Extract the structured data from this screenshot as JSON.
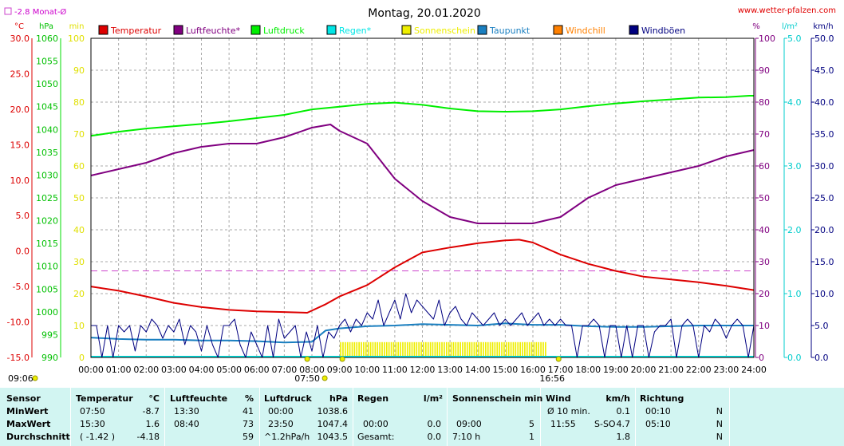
{
  "page": {
    "title": "Montag, 20.01.2020",
    "website": "www.wetter-pfalzen.com",
    "month_avg_label": "-2.8 Monat-Ø"
  },
  "chart_data": {
    "type": "line",
    "title": "Montag, 20.01.2020",
    "x_range_hours": [
      0,
      24
    ],
    "x_tick_labels": [
      "00:00",
      "01:00",
      "02:00",
      "03:00",
      "04:00",
      "05:00",
      "06:00",
      "07:00",
      "08:00",
      "09:00",
      "10:00",
      "11:00",
      "12:00",
      "13:00",
      "14:00",
      "15:00",
      "16:00",
      "17:00",
      "18:00",
      "19:00",
      "20:00",
      "21:00",
      "22:00",
      "23:00",
      "24:00"
    ],
    "grid": true,
    "legend_position": "top",
    "axes": {
      "temperature": {
        "unit": "°C",
        "range": [
          -15,
          30
        ],
        "ticks": [
          "30.0",
          "25.0",
          "20.0",
          "15.0",
          "10.0",
          "5.0",
          "0.0",
          "-5.0",
          "-10.0",
          "-15.0"
        ]
      },
      "pressure": {
        "unit": "hPa",
        "range": [
          990,
          1060
        ],
        "ticks": [
          "1060",
          "1055",
          "1050",
          "1045",
          "1040",
          "1035",
          "1030",
          "1025",
          "1020",
          "1015",
          "1010",
          "1005",
          "1000",
          "995",
          "990"
        ]
      },
      "minutes": {
        "unit": "min",
        "range": [
          0,
          100
        ],
        "ticks": [
          "100",
          "90",
          "80",
          "70",
          "60",
          "50",
          "40",
          "30",
          "20",
          "10",
          "0"
        ]
      },
      "humidity": {
        "unit": "%",
        "range": [
          0,
          100
        ],
        "ticks": [
          "100",
          "90",
          "80",
          "70",
          "60",
          "50",
          "40",
          "30",
          "20",
          "10",
          "0"
        ]
      },
      "rain": {
        "unit": "l/m²",
        "range": [
          0,
          5
        ],
        "ticks": [
          "5.0",
          "4.0",
          "3.0",
          "2.0",
          "1.0",
          "0.0"
        ]
      },
      "wind": {
        "unit": "km/h",
        "range": [
          0,
          50
        ],
        "ticks": [
          "50.0",
          "45.0",
          "40.0",
          "35.0",
          "30.0",
          "25.0",
          "20.0",
          "15.0",
          "10.0",
          "5.0",
          "0.0"
        ]
      }
    },
    "monthly_avg_temperature": -2.8,
    "legend": [
      {
        "name": "Temperatur",
        "color": "#dd0000"
      },
      {
        "name": "Luftfeuchte*",
        "color": "#800080"
      },
      {
        "name": "Luftdruck",
        "color": "#00ee00"
      },
      {
        "name": "Regen*",
        "color": "#00e5e5"
      },
      {
        "name": "Sonnenschein",
        "color": "#eeee00"
      },
      {
        "name": "Taupunkt",
        "color": "#1a7fc0"
      },
      {
        "name": "Windchill",
        "color": "#ff8000"
      },
      {
        "name": "Windböen",
        "color": "#000080"
      }
    ],
    "series": [
      {
        "name": "Temperatur",
        "axis": "temperature",
        "color": "#dd0000",
        "x": [
          0,
          1,
          2,
          3,
          4,
          5,
          6,
          7,
          7.83,
          8.5,
          9,
          10,
          11,
          12,
          13,
          14,
          15,
          15.5,
          16,
          17,
          18,
          19,
          20,
          21,
          22,
          23,
          24
        ],
        "y": [
          -5.0,
          -5.6,
          -6.4,
          -7.3,
          -7.9,
          -8.3,
          -8.5,
          -8.6,
          -8.7,
          -7.5,
          -6.4,
          -4.8,
          -2.3,
          -0.2,
          0.5,
          1.1,
          1.5,
          1.6,
          1.2,
          -0.5,
          -1.8,
          -2.8,
          -3.6,
          -4.0,
          -4.4,
          -4.9,
          -5.5
        ]
      },
      {
        "name": "Luftfeuchte",
        "axis": "humidity",
        "color": "#800080",
        "x": [
          0,
          1,
          2,
          3,
          4,
          5,
          6,
          7,
          8,
          8.67,
          9,
          10,
          11,
          12,
          13,
          14,
          15,
          16,
          17,
          18,
          19,
          20,
          21,
          22,
          23,
          24
        ],
        "y": [
          57,
          59,
          61,
          64,
          66,
          67,
          67,
          69,
          72,
          73,
          71,
          67,
          56,
          49,
          44,
          42,
          42,
          42,
          44,
          50,
          54,
          56,
          58,
          60,
          63,
          65
        ]
      },
      {
        "name": "Luftdruck",
        "axis": "pressure",
        "color": "#00ee00",
        "x": [
          0,
          1,
          2,
          3,
          4,
          5,
          6,
          7,
          8,
          9,
          10,
          11,
          12,
          13,
          14,
          15,
          16,
          17,
          18,
          19,
          20,
          21,
          22,
          23,
          23.83,
          24
        ],
        "y": [
          1038.6,
          1039.5,
          1040.2,
          1040.7,
          1041.2,
          1041.8,
          1042.5,
          1043.2,
          1044.4,
          1045.0,
          1045.6,
          1045.9,
          1045.4,
          1044.6,
          1044.0,
          1043.9,
          1044.0,
          1044.4,
          1045.1,
          1045.7,
          1046.2,
          1046.6,
          1047.0,
          1047.1,
          1047.4,
          1047.4
        ]
      },
      {
        "name": "Taupunkt",
        "axis": "temperature",
        "color": "#1a7fc0",
        "x": [
          0,
          1,
          2,
          3,
          4,
          5,
          6,
          7,
          8,
          8.5,
          9,
          10,
          11,
          12,
          13,
          14,
          15,
          16,
          17,
          18,
          19,
          20,
          21,
          22,
          23,
          24
        ],
        "y": [
          -12.2,
          -12.4,
          -12.5,
          -12.5,
          -12.6,
          -12.6,
          -12.7,
          -12.9,
          -12.8,
          -11.2,
          -10.9,
          -10.6,
          -10.5,
          -10.3,
          -10.4,
          -10.5,
          -10.2,
          -10.4,
          -10.4,
          -10.6,
          -10.7,
          -10.7,
          -10.6,
          -10.5,
          -10.5,
          -10.5
        ]
      },
      {
        "name": "Windböen",
        "axis": "wind",
        "color": "#000080",
        "x": [
          0,
          0.2,
          0.4,
          0.6,
          0.8,
          1,
          1.2,
          1.4,
          1.6,
          1.8,
          2,
          2.2,
          2.4,
          2.6,
          2.8,
          3,
          3.2,
          3.4,
          3.6,
          3.8,
          4,
          4.2,
          4.4,
          4.6,
          4.8,
          5,
          5.2,
          5.4,
          5.6,
          5.8,
          6,
          6.2,
          6.4,
          6.6,
          6.8,
          7,
          7.2,
          7.4,
          7.6,
          7.8,
          8,
          8.2,
          8.4,
          8.6,
          8.8,
          9,
          9.2,
          9.4,
          9.6,
          9.8,
          10,
          10.2,
          10.4,
          10.6,
          10.8,
          11,
          11.2,
          11.4,
          11.6,
          11.8,
          12,
          12.2,
          12.4,
          12.6,
          12.8,
          13,
          13.2,
          13.4,
          13.6,
          13.8,
          14,
          14.2,
          14.4,
          14.6,
          14.8,
          15,
          15.2,
          15.4,
          15.6,
          15.8,
          16,
          16.2,
          16.4,
          16.6,
          16.8,
          17,
          17.2,
          17.4,
          17.6,
          17.8,
          18,
          18.2,
          18.4,
          18.6,
          18.8,
          19,
          19.2,
          19.4,
          19.6,
          19.8,
          20,
          20.2,
          20.4,
          20.6,
          20.8,
          21,
          21.2,
          21.4,
          21.6,
          21.8,
          22,
          22.2,
          22.4,
          22.6,
          22.8,
          23,
          23.2,
          23.4,
          23.6,
          23.8,
          24
        ],
        "y": [
          5,
          5,
          0,
          5,
          0,
          5,
          4,
          5,
          1,
          5,
          4,
          6,
          5,
          3,
          5,
          4,
          6,
          2,
          5,
          4,
          1,
          5,
          2,
          0,
          5,
          5,
          6,
          2,
          0,
          4,
          2,
          0,
          5,
          0,
          6,
          3,
          4,
          5,
          0,
          4,
          1,
          5,
          0,
          4,
          3,
          5,
          6,
          4,
          6,
          5,
          7,
          6,
          9,
          5,
          7,
          9,
          6,
          10,
          7,
          9,
          8,
          7,
          6,
          9,
          5,
          7,
          8,
          6,
          5,
          7,
          6,
          5,
          6,
          7,
          5,
          6,
          5,
          6,
          7,
          5,
          6,
          7,
          5,
          6,
          5,
          6,
          5,
          5,
          0,
          5,
          5,
          6,
          5,
          0,
          5,
          5,
          0,
          5,
          0,
          5,
          5,
          0,
          4,
          5,
          5,
          6,
          0,
          5,
          6,
          5,
          0,
          5,
          4,
          6,
          5,
          3,
          5,
          6,
          5,
          0,
          5
        ]
      }
    ],
    "sunshine_bars": {
      "from_hour": 9,
      "to_hour": 16.5,
      "level_min": 4.8,
      "color": "#eeee00"
    },
    "markers": [
      {
        "label": "07:50",
        "hour": 7.83
      },
      {
        "label": "09:06",
        "hour": 9.1
      },
      {
        "label": "16:56",
        "hour": 16.93
      }
    ]
  },
  "stats": {
    "headers": {
      "sensor": "Sensor",
      "temperatur": "Temperatur",
      "temp_unit": "°C",
      "luftfeuchte": "Luftfeuchte",
      "luft_unit": "%",
      "luftdruck": "Luftdruck",
      "druck_unit": "hPa",
      "regen": "Regen",
      "regen_unit": "l/m²",
      "sonne": "Sonnenschein min",
      "wind": "Wind",
      "wind_unit": "km/h",
      "richtung": "Richtung"
    },
    "rows": {
      "min": {
        "label": "MinWert",
        "temp_time": "07:50",
        "temp_val": "-8.7",
        "hum_time": "13:30",
        "hum_val": "41",
        "pres_time": "00:00",
        "pres_val": "1038.6",
        "rain_time": "",
        "rain_val": "",
        "sun_time": "",
        "sun_val": "",
        "wind_time": "Ø 10 min.",
        "wind_val": "0.1",
        "dir_time": "00:10",
        "dir_val": "N"
      },
      "max": {
        "label": "MaxWert",
        "temp_time": "15:30",
        "temp_val": "1.6",
        "hum_time": "08:40",
        "hum_val": "73",
        "pres_time": "23:50",
        "pres_val": "1047.4",
        "rain_time": "00:00",
        "rain_val": "0.0",
        "sun_time": "09:00",
        "sun_val": "5",
        "wind_time": "11:55",
        "wind_dir": "S-SO",
        "wind_val": "4.7",
        "dir_time": "05:10",
        "dir_val": "N"
      },
      "avg": {
        "label": "Durchschnitt",
        "temp_time": "( -1.42 )",
        "temp_val": "-4.18",
        "hum_time": "",
        "hum_val": "59",
        "pres_time": "^1.2hPa/h",
        "pres_val": "1043.5",
        "rain_time": "Gesamt:",
        "rain_val": "0.0",
        "sun_time": "7:10 h",
        "sun_val": "1",
        "wind_time": "",
        "wind_val": "1.8",
        "dir_time": "",
        "dir_val": "N"
      }
    }
  }
}
